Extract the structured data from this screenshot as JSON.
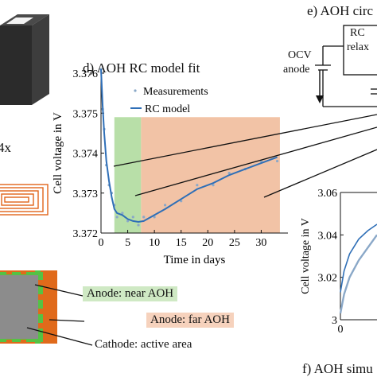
{
  "panels": {
    "left": {
      "count_label": "4x",
      "labels": [
        {
          "text": "Anode: near AOH",
          "bg": "#cfe9c4"
        },
        {
          "text": "Anode: far AOH",
          "bg": "#f6d2bd"
        },
        {
          "text": "Cathode: active area",
          "bg": "#ffffff"
        }
      ]
    },
    "d": {
      "title": "d) AOH RC model fit",
      "ylabel": "Cell voltage in V",
      "xlabel": "Time in days",
      "legend": [
        "Measurements",
        "RC model"
      ]
    },
    "e": {
      "title": "e) AOH circ",
      "circuit": {
        "ocv": "OCV",
        "anode": "anode",
        "rc": "RC",
        "relax": "relax"
      }
    },
    "f": {
      "title": "f) AOH simu",
      "ylabel": "Cell voltage in V",
      "yticks": [
        "3.06",
        "3.04",
        "3.02",
        "3"
      ],
      "xticks": [
        "0"
      ]
    }
  },
  "colors": {
    "green_region": "#b8dfa8",
    "orange_region": "#f2c3a6",
    "model_line": "#2f6fb7",
    "measurement": "#8aa8c8",
    "orange_fill": "#e06a1b",
    "green_fill": "#55c244",
    "gray_fill": "#8c8c8c"
  },
  "chart_data": [
    {
      "type": "line",
      "panel": "d",
      "title": "d) AOH RC model fit",
      "xlabel": "Time in days",
      "ylabel": "Cell voltage in V",
      "xlim": [
        0,
        35
      ],
      "ylim": [
        3.372,
        3.376
      ],
      "xticks": [
        0,
        5,
        10,
        15,
        20,
        25,
        30
      ],
      "yticks": [
        3.372,
        3.373,
        3.374,
        3.375,
        3.376
      ],
      "shaded_regions": [
        {
          "x": [
            2.5,
            7.5
          ],
          "color": "green"
        },
        {
          "x": [
            7.5,
            33.5
          ],
          "color": "orange"
        }
      ],
      "series": [
        {
          "name": "RC model",
          "x": [
            0,
            0.3,
            0.6,
            1,
            1.5,
            2,
            2.5,
            3,
            4,
            5,
            6,
            7,
            8,
            10,
            12,
            15,
            18,
            21,
            24,
            27,
            30,
            33
          ],
          "y": [
            3.3761,
            3.3752,
            3.3745,
            3.3738,
            3.3733,
            3.3729,
            3.3726,
            3.3725,
            3.37245,
            3.37235,
            3.3723,
            3.37228,
            3.3723,
            3.37245,
            3.3726,
            3.37285,
            3.3731,
            3.37325,
            3.37345,
            3.3736,
            3.37375,
            3.3739
          ]
        },
        {
          "name": "Measurements",
          "x": [
            0,
            0.3,
            0.6,
            1,
            1.5,
            2,
            2.5,
            3,
            4,
            5,
            6,
            7,
            8,
            10,
            12,
            15,
            18,
            21,
            24,
            27,
            30,
            33
          ],
          "y": [
            3.3761,
            3.3751,
            3.3746,
            3.3737,
            3.3732,
            3.373,
            3.3727,
            3.3724,
            3.3725,
            3.3723,
            3.3724,
            3.3722,
            3.3724,
            3.3724,
            3.3727,
            3.3728,
            3.3732,
            3.3732,
            3.3735,
            3.3736,
            3.3738,
            3.3738
          ]
        }
      ]
    },
    {
      "type": "line",
      "panel": "f",
      "ylabel": "Cell voltage in V",
      "ylim": [
        3.0,
        3.06
      ],
      "yticks": [
        3.0,
        3.02,
        3.04,
        3.06
      ],
      "series": [
        {
          "x": [
            0,
            0.2,
            0.5,
            1,
            1.5,
            2
          ],
          "y": [
            3.013,
            3.023,
            3.031,
            3.038,
            3.042,
            3.045
          ]
        },
        {
          "x": [
            0,
            0.2,
            0.5,
            1,
            1.5,
            2
          ],
          "y": [
            3.003,
            3.012,
            3.02,
            3.028,
            3.034,
            3.04
          ]
        }
      ]
    }
  ]
}
